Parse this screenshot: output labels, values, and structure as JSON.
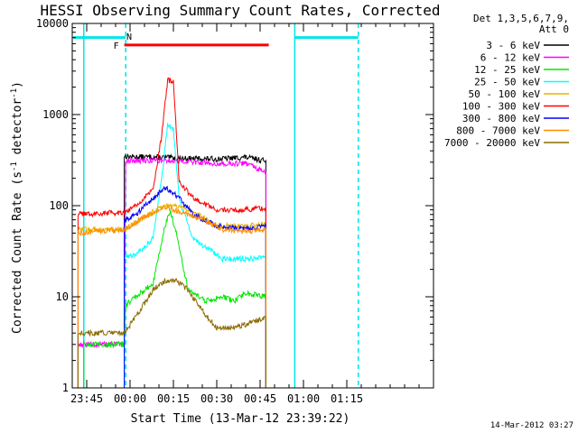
{
  "chart_data": {
    "type": "line",
    "title": "HESSI Observing Summary Count Rates, Corrected",
    "xlabel": "Start Time (13-Mar-12 23:39:22)",
    "ylabel": "Corrected Count Rate (s",
    "ylabel_unit_tail": "detector",
    "ylabel_sup1": "-1",
    "ylabel_sup2": "-1",
    "ylabel_close": ")",
    "y_scale": "log",
    "ylim": [
      1,
      10000
    ],
    "xlim_min": [
      -20,
      105
    ],
    "x_ticks": [
      {
        "min": -15,
        "label": "23:45"
      },
      {
        "min": 0,
        "label": "00:00"
      },
      {
        "min": 15,
        "label": "00:15"
      },
      {
        "min": 30,
        "label": "00:30"
      },
      {
        "min": 45,
        "label": "00:45"
      },
      {
        "min": 60,
        "label": "01:00"
      },
      {
        "min": 75,
        "label": "01:15"
      }
    ],
    "y_ticks": [
      {
        "value": 1,
        "label": "1"
      },
      {
        "value": 10,
        "label": "10"
      },
      {
        "value": 100,
        "label": "100"
      },
      {
        "value": 1000,
        "label": "1000"
      },
      {
        "value": 10000,
        "label": "10000"
      }
    ],
    "legend_header": [
      "Det 1,3,5,6,7,9,",
      "Att 0"
    ],
    "legend_position": "right",
    "timestamp": "14-Mar-2012 03:27",
    "markers": [
      {
        "label": "F",
        "color": "#ff0000",
        "x_start": -2,
        "x_end": 48,
        "y": 5800
      },
      {
        "label": "N",
        "color": "#00e5e5",
        "x": 0
      }
    ],
    "night_lines": [
      {
        "x": -16,
        "color": "#00e5e5"
      },
      {
        "x": -1.5,
        "color": "#00e5e5",
        "dashed": true
      },
      {
        "x": 57,
        "color": "#00e5e5"
      },
      {
        "x": 79,
        "color": "#00e5e5",
        "dashed": true
      }
    ],
    "night_bars": [
      {
        "x_start": -20,
        "x_end": -1.5,
        "y": 7000
      },
      {
        "x_start": 57,
        "x_end": 79,
        "y": 7000
      }
    ],
    "series": [
      {
        "name": "3 - 6 keV",
        "color": "#000000",
        "x": [
          -2,
          0,
          10,
          20,
          30,
          40,
          47
        ],
        "values": [
          350,
          345,
          340,
          330,
          325,
          340,
          310
        ]
      },
      {
        "name": "6 - 12 keV",
        "color": "#ff00ff",
        "x": [
          -18,
          -16,
          -2,
          -1.5,
          0,
          10,
          20,
          30,
          40,
          47
        ],
        "values": [
          3,
          3,
          3,
          300,
          310,
          315,
          305,
          290,
          290,
          230
        ]
      },
      {
        "name": "12 - 25 keV",
        "color": "#00e600",
        "x": [
          -16,
          -8,
          -2,
          -1.5,
          2,
          8,
          12,
          14,
          16,
          20,
          26,
          32,
          36,
          40,
          47
        ],
        "values": [
          3,
          3,
          3,
          8,
          10,
          14,
          60,
          85,
          50,
          12,
          9,
          10,
          9,
          11,
          10
        ]
      },
      {
        "name": "25 - 50 keV",
        "color": "#00ffff",
        "x": [
          -2,
          0,
          4,
          8,
          11,
          13,
          15,
          17,
          22,
          27,
          32,
          40,
          47
        ],
        "values": [
          27,
          28,
          32,
          45,
          200,
          800,
          700,
          120,
          42,
          34,
          26,
          26,
          27
        ]
      },
      {
        "name": "50 - 100 keV",
        "color": "#e6b400",
        "x": [
          -18,
          -2,
          0,
          5,
          10,
          15,
          20,
          25,
          30,
          40,
          47
        ],
        "values": [
          55,
          55,
          60,
          75,
          95,
          100,
          90,
          75,
          60,
          60,
          62
        ]
      },
      {
        "name": "100 - 300 keV",
        "color": "#ff0000",
        "x": [
          -18,
          -2,
          2,
          8,
          11,
          13,
          15,
          17,
          22,
          30,
          40,
          47
        ],
        "values": [
          80,
          85,
          100,
          150,
          600,
          2400,
          2300,
          180,
          120,
          90,
          90,
          95
        ]
      },
      {
        "name": "300 - 800 keV",
        "color": "#0000ff",
        "x": [
          -2,
          2,
          8,
          12,
          16,
          22,
          30,
          40,
          47
        ],
        "values": [
          70,
          80,
          120,
          160,
          130,
          80,
          60,
          55,
          60
        ]
      },
      {
        "name": "800 - 7000 keV",
        "color": "#ff8c00",
        "x": [
          -18,
          -2,
          5,
          12,
          18,
          25,
          32,
          40,
          47
        ],
        "values": [
          50,
          55,
          75,
          95,
          85,
          70,
          55,
          52,
          55
        ]
      },
      {
        "name": "7000 - 20000 keV",
        "color": "#8b6b00",
        "x": [
          -18,
          -8,
          -2,
          2,
          8,
          12,
          16,
          20,
          25,
          30,
          35,
          40,
          47
        ],
        "values": [
          4,
          4,
          4,
          6,
          12,
          15,
          15,
          12,
          7,
          4.5,
          4.5,
          5,
          6
        ]
      }
    ]
  }
}
